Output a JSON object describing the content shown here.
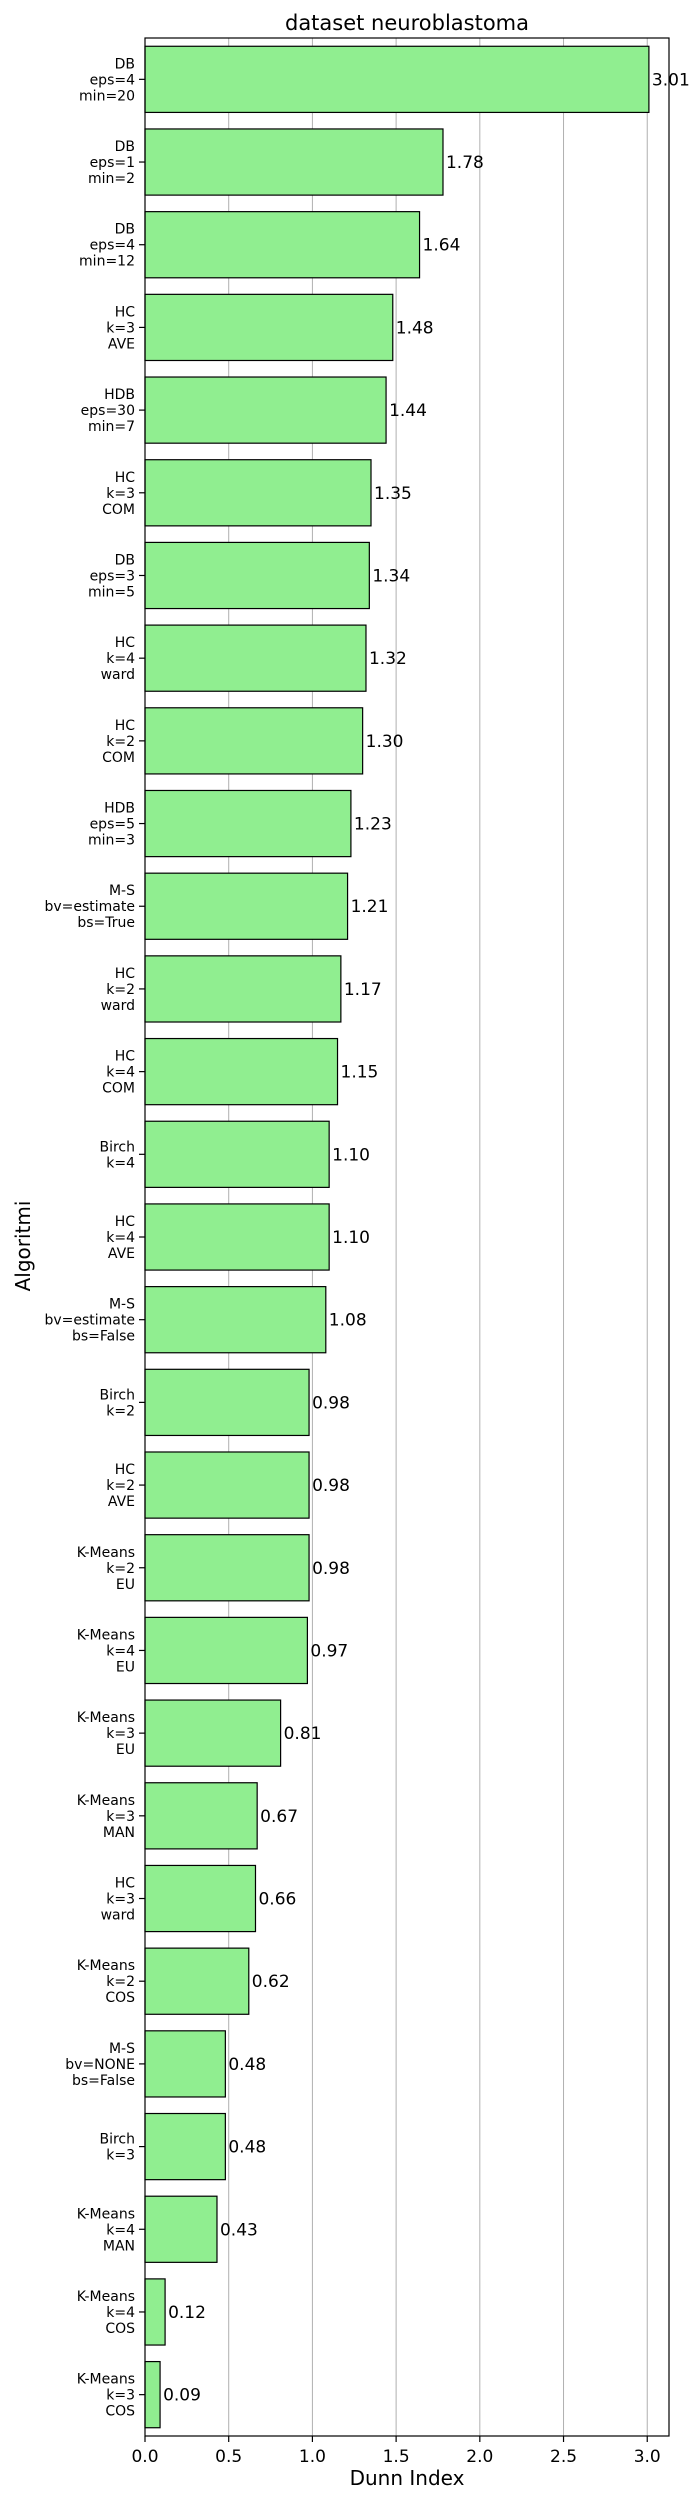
{
  "chart_data": {
    "type": "bar",
    "orientation": "horizontal",
    "title": "dataset neuroblastoma",
    "xlabel": "Dunn Index",
    "ylabel": "Algoritmi",
    "xlim": [
      0,
      3.13
    ],
    "xticks": [
      "0.0",
      "0.5",
      "1.0",
      "1.5",
      "2.0",
      "2.5",
      "3.0"
    ],
    "grid": "vertical",
    "bar_color": "#90ee90",
    "bar_edge_color": "#000000",
    "categories": [
      [
        "DB",
        "eps=4",
        "min=20"
      ],
      [
        "DB",
        "eps=1",
        "min=2"
      ],
      [
        "DB",
        "eps=4",
        "min=12"
      ],
      [
        "HC",
        "k=3",
        "AVE"
      ],
      [
        "HDB",
        "eps=30",
        "min=7"
      ],
      [
        "HC",
        "k=3",
        "COM"
      ],
      [
        "DB",
        "eps=3",
        "min=5"
      ],
      [
        "HC",
        "k=4",
        "ward"
      ],
      [
        "HC",
        "k=2",
        "COM"
      ],
      [
        "HDB",
        "eps=5",
        "min=3"
      ],
      [
        "M-S",
        "bv=estimate",
        "bs=True"
      ],
      [
        "HC",
        "k=2",
        "ward"
      ],
      [
        "HC",
        "k=4",
        "COM"
      ],
      [
        "Birch",
        "k=4"
      ],
      [
        "HC",
        "k=4",
        "AVE"
      ],
      [
        "M-S",
        "bv=estimate",
        "bs=False"
      ],
      [
        "Birch",
        "k=2"
      ],
      [
        "HC",
        "k=2",
        "AVE"
      ],
      [
        "K-Means",
        "k=2",
        "EU"
      ],
      [
        "K-Means",
        "k=4",
        "EU"
      ],
      [
        "K-Means",
        "k=3",
        "EU"
      ],
      [
        "K-Means",
        "k=3",
        "MAN"
      ],
      [
        "HC",
        "k=3",
        "ward"
      ],
      [
        "K-Means",
        "k=2",
        "COS"
      ],
      [
        "M-S",
        "bv=NONE",
        "bs=False"
      ],
      [
        "Birch",
        "k=3"
      ],
      [
        "K-Means",
        "k=4",
        "MAN"
      ],
      [
        "K-Means",
        "k=4",
        "COS"
      ],
      [
        "K-Means",
        "k=3",
        "COS"
      ]
    ],
    "values": [
      3.01,
      1.78,
      1.64,
      1.48,
      1.44,
      1.35,
      1.34,
      1.32,
      1.3,
      1.23,
      1.21,
      1.17,
      1.15,
      1.1,
      1.1,
      1.08,
      0.98,
      0.98,
      0.98,
      0.97,
      0.81,
      0.67,
      0.66,
      0.62,
      0.48,
      0.48,
      0.43,
      0.12,
      0.09
    ],
    "value_labels": [
      "3.01",
      "1.78",
      "1.64",
      "1.48",
      "1.44",
      "1.35",
      "1.34",
      "1.32",
      "1.30",
      "1.23",
      "1.21",
      "1.17",
      "1.15",
      "1.10",
      "1.10",
      "1.08",
      "0.98",
      "0.98",
      "0.98",
      "0.97",
      "0.81",
      "0.67",
      "0.66",
      "0.62",
      "0.48",
      "0.48",
      "0.43",
      "0.12",
      "0.09"
    ]
  }
}
